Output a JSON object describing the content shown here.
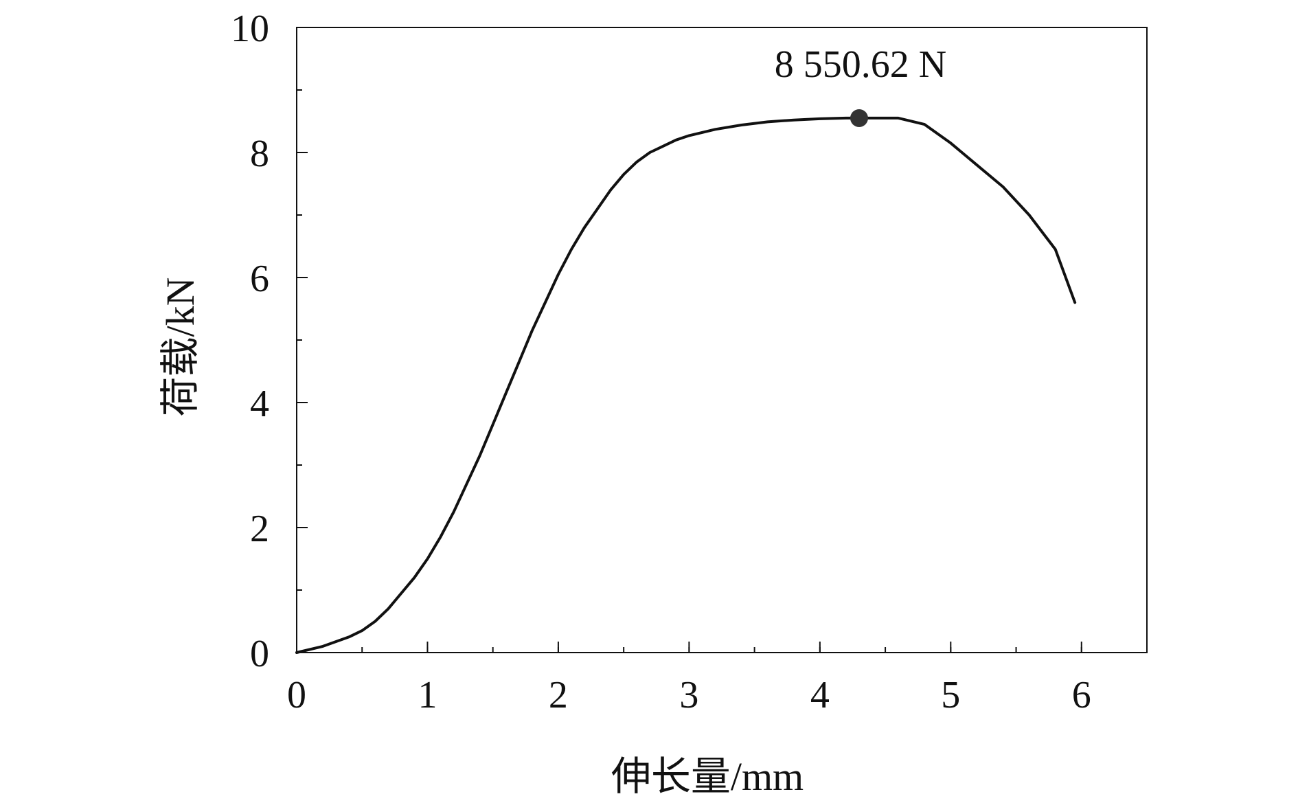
{
  "chart_data": {
    "type": "line",
    "title": "",
    "xlabel": "伸长量/mm",
    "ylabel": "荷载/kN",
    "xlim": [
      0,
      6.5
    ],
    "ylim": [
      0,
      10
    ],
    "x_ticks": [
      0,
      1,
      2,
      3,
      4,
      5,
      6
    ],
    "y_ticks": [
      0,
      2,
      4,
      6,
      8,
      10
    ],
    "x_minor_step": 0.5,
    "y_minor_step": 1,
    "grid": false,
    "line_color": "#111111",
    "series": [
      {
        "x": [
          0,
          0.2,
          0.4,
          0.5,
          0.6,
          0.7,
          0.8,
          0.9,
          1.0,
          1.1,
          1.2,
          1.3,
          1.4,
          1.5,
          1.6,
          1.7,
          1.8,
          1.9,
          2.0,
          2.1,
          2.2,
          2.3,
          2.4,
          2.5,
          2.6,
          2.7,
          2.8,
          2.9,
          3.0,
          3.2,
          3.4,
          3.6,
          3.8,
          4.0,
          4.2,
          4.3,
          4.4,
          4.6,
          4.8,
          5.0,
          5.2,
          5.4,
          5.6,
          5.8,
          5.95
        ],
        "y": [
          0,
          0.1,
          0.25,
          0.35,
          0.5,
          0.7,
          0.95,
          1.2,
          1.5,
          1.85,
          2.25,
          2.7,
          3.15,
          3.65,
          4.15,
          4.65,
          5.15,
          5.6,
          6.05,
          6.45,
          6.8,
          7.1,
          7.4,
          7.65,
          7.85,
          8.0,
          8.1,
          8.2,
          8.27,
          8.37,
          8.44,
          8.49,
          8.52,
          8.54,
          8.55,
          8.55,
          8.55,
          8.55,
          8.45,
          8.15,
          7.8,
          7.45,
          7.0,
          6.45,
          5.6
        ]
      }
    ],
    "annotations": [
      {
        "x": 4.3,
        "y": 8.55,
        "text": "8 550.62 N"
      }
    ]
  }
}
